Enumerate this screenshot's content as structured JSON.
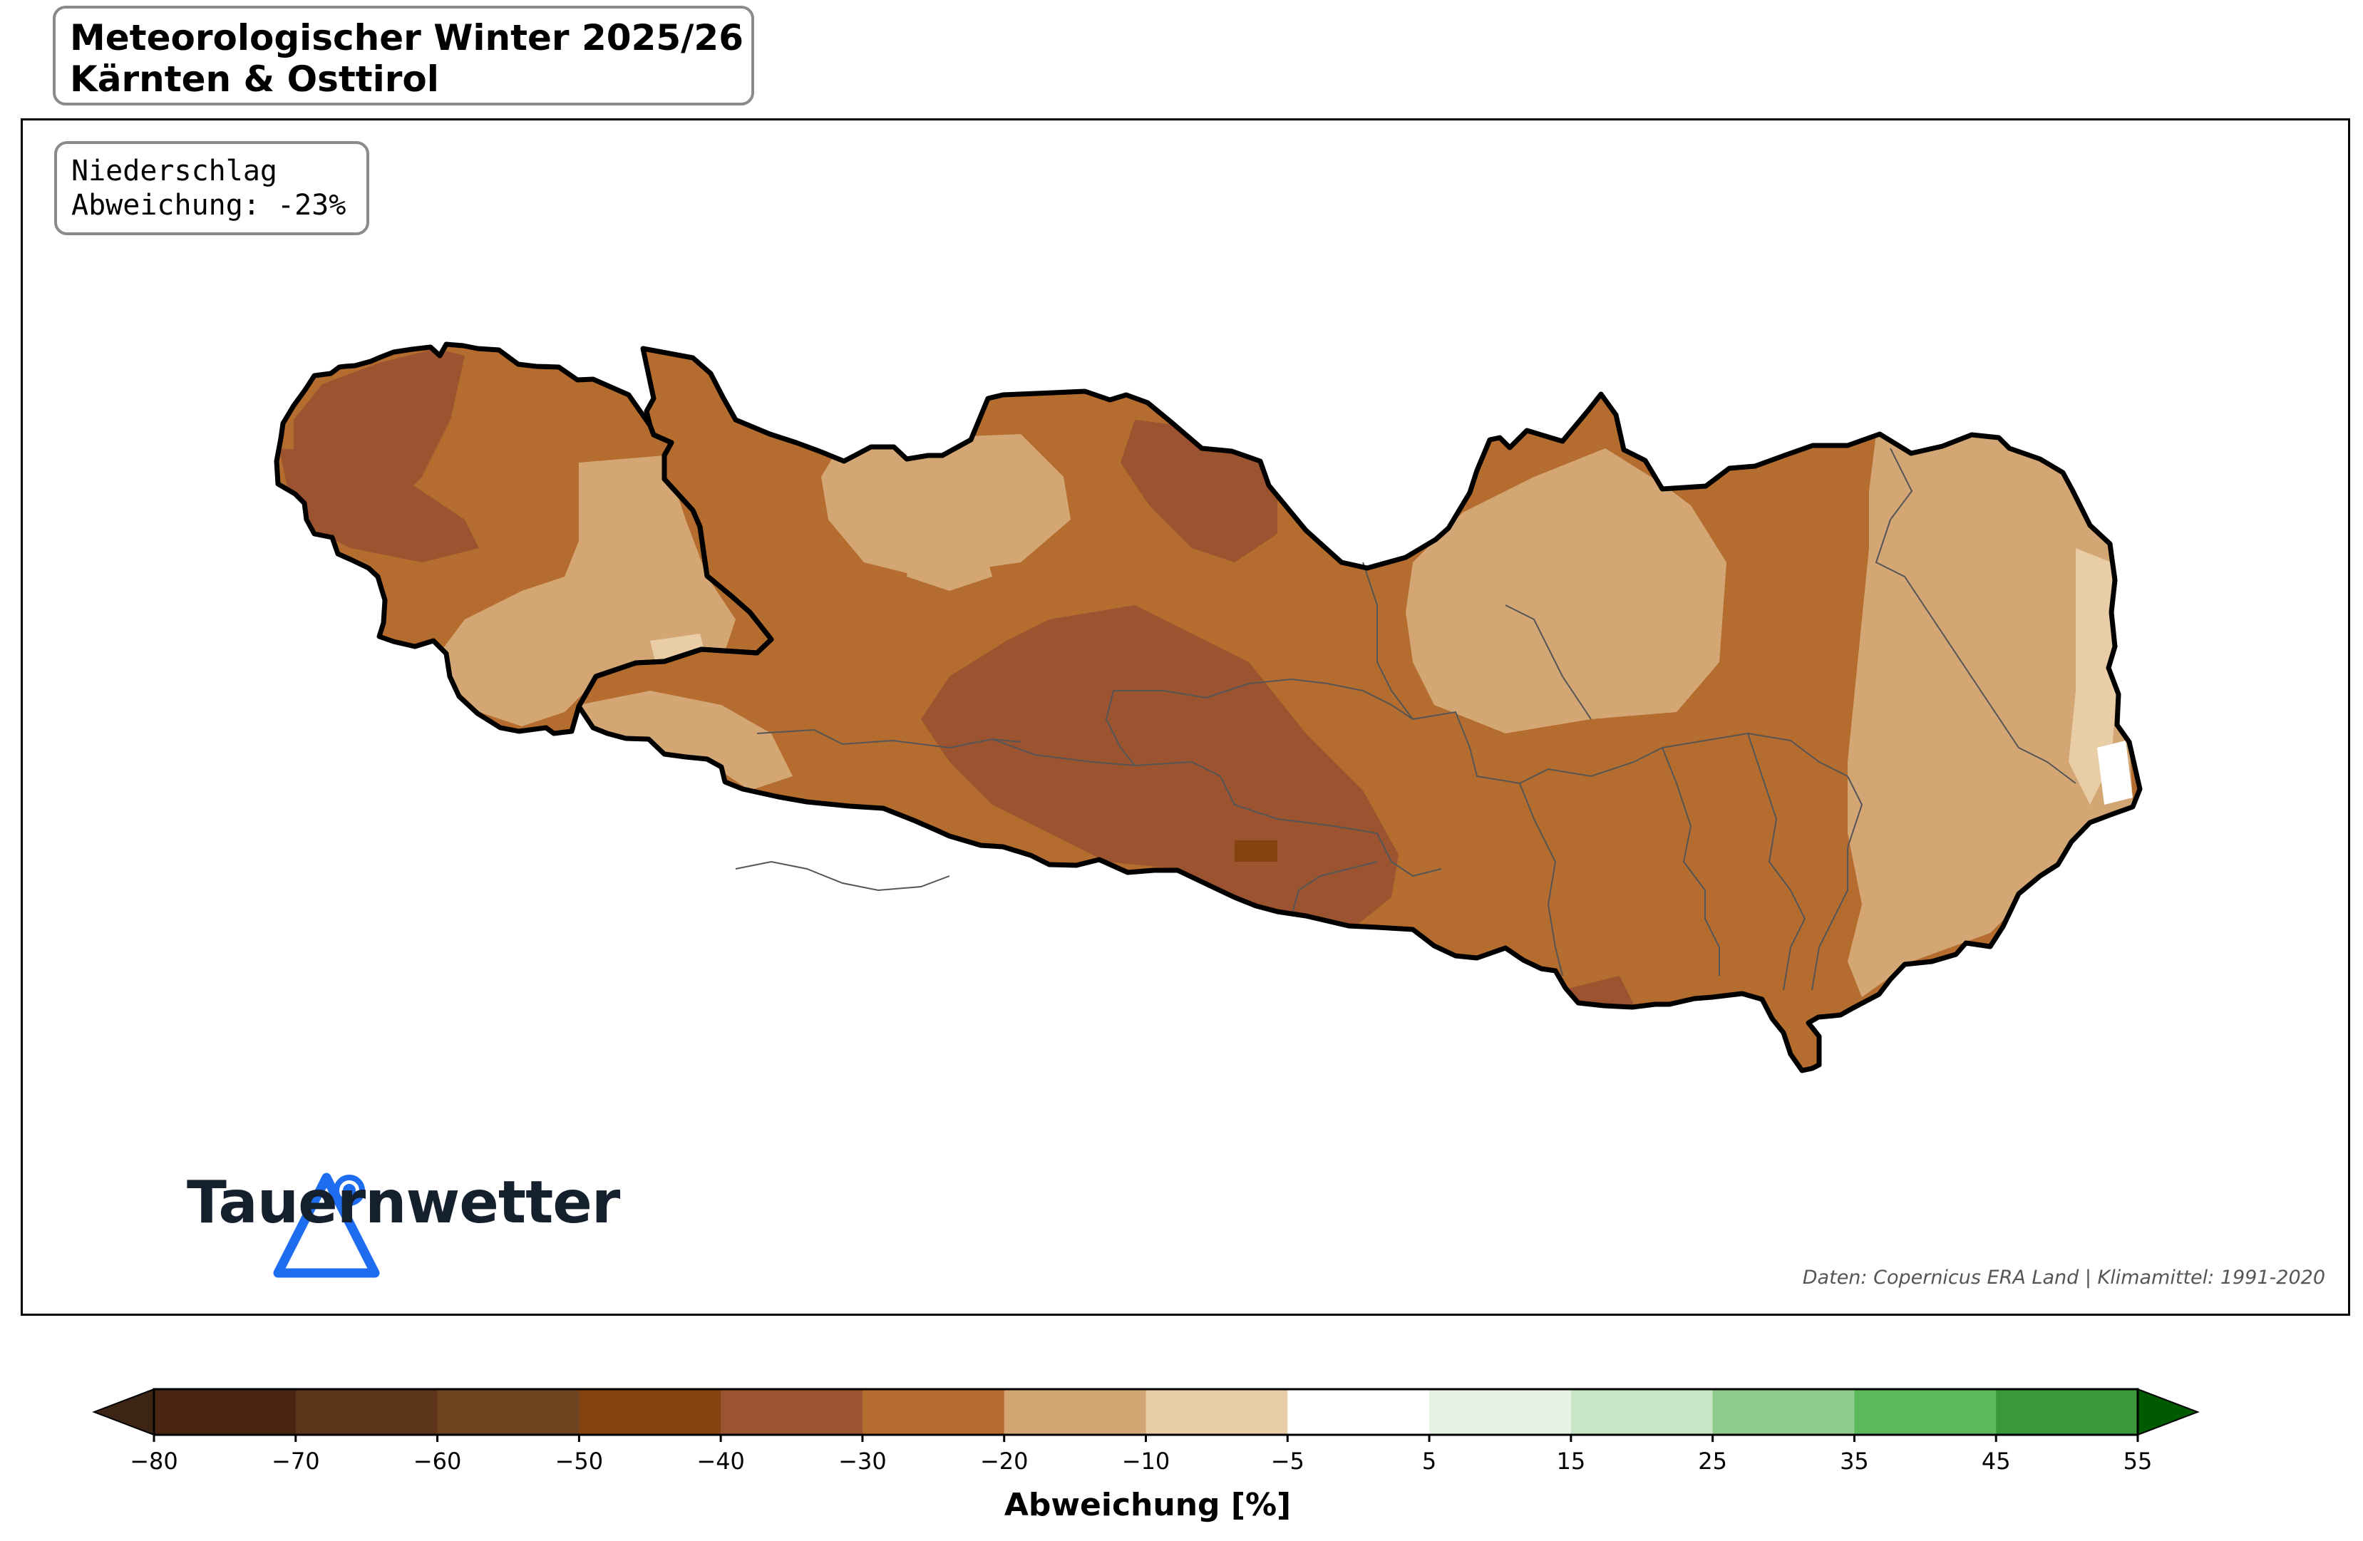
{
  "header": {
    "title_line1": "Meteorologischer Winter 2025/26",
    "title_line2": "Kärnten & Osttirol"
  },
  "info": {
    "line1": "Niederschlag",
    "line2": "Abweichung: -23%"
  },
  "logo": {
    "name": "Tauernwetter",
    "icon": "triangle-pin-logo-icon",
    "color": "#1e6cf0"
  },
  "source": "Daten: Copernicus ERA Land | Klimamittel: 1991-2020",
  "colorbar": {
    "label": "Abweichung [%]",
    "ticks": [
      "−80",
      "−70",
      "−60",
      "−50",
      "−40",
      "−30",
      "−20",
      "−10",
      "−5",
      "5",
      "15",
      "25",
      "35",
      "45",
      "55"
    ],
    "under_color": "#3d2515",
    "over_color": "#005a00",
    "colors": [
      "#4a2612",
      "#5c3519",
      "#6e4420",
      "#844412",
      "#9b5330",
      "#b46d2e",
      "#d3a674",
      "#e8cda6",
      "#ffffff",
      "#e6f3e3",
      "#c7e6c5",
      "#8fcb8c",
      "#5bb85b",
      "#3a9a3a"
    ]
  },
  "map_colors": {
    "very_dry": "#9b5330",
    "dry": "#b46d2e",
    "moderate": "#d3a674",
    "light": "#e8cda6",
    "darkest": "#844412",
    "border": "#000000",
    "district": "#555555"
  }
}
